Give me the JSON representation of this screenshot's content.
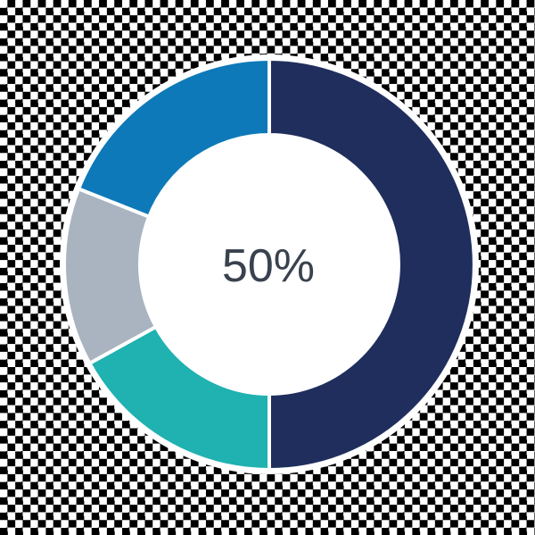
{
  "chart_data": {
    "type": "donut",
    "title": "",
    "center_label": "50%",
    "center_label_color": "#39424E",
    "ring_outline_color": "#FFFFFF",
    "hole_color": "#FFFFFF",
    "start_angle_deg": 0,
    "direction": "clockwise",
    "segments": [
      {
        "name": "dark-navy",
        "value": 50,
        "color": "#1F2E5C"
      },
      {
        "name": "teal",
        "value": 17,
        "color": "#20B1B1"
      },
      {
        "name": "gray",
        "value": 14,
        "color": "#A9B4C0"
      },
      {
        "name": "blue",
        "value": 19,
        "color": "#0E79B8"
      }
    ]
  }
}
